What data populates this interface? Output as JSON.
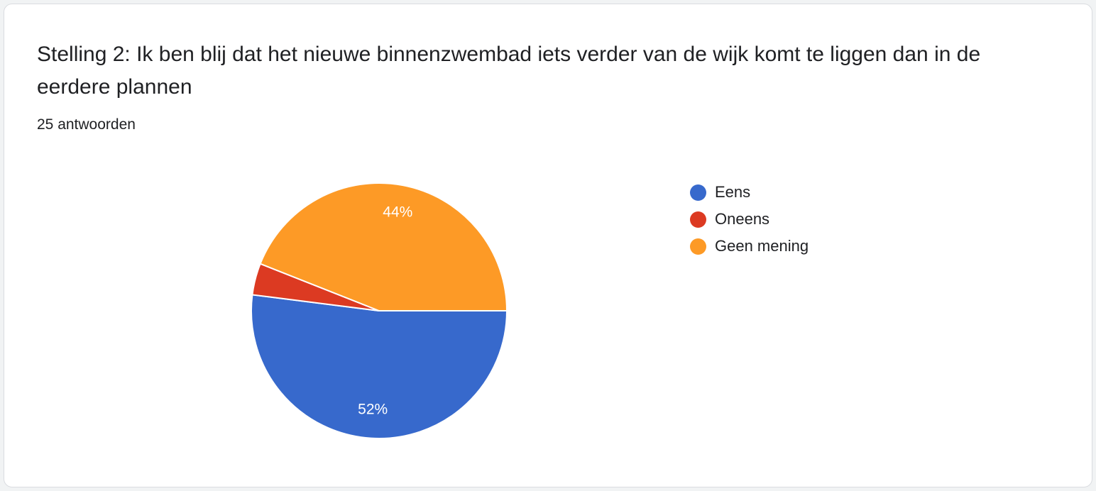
{
  "card": {
    "title": "Stelling 2: Ik ben blij dat het nieuwe binnenzwembad iets verder van de wijk komt te liggen dan in de eerdere plannen",
    "responses": "25 antwoorden"
  },
  "chart_data": {
    "type": "pie",
    "title": "Stelling 2: Ik ben blij dat het nieuwe binnenzwembad iets verder van de wijk komt te liggen dan in de eerdere plannen",
    "subtitle": "25 antwoorden",
    "legend_position": "right",
    "slices": [
      {
        "label": "Eens",
        "value": 52,
        "display": "52%",
        "color": "#3769cc"
      },
      {
        "label": "Oneens",
        "value": 4,
        "display": "",
        "color": "#dc3a22"
      },
      {
        "label": "Geen mening",
        "value": 44,
        "display": "44%",
        "color": "#fd9a26"
      }
    ]
  }
}
